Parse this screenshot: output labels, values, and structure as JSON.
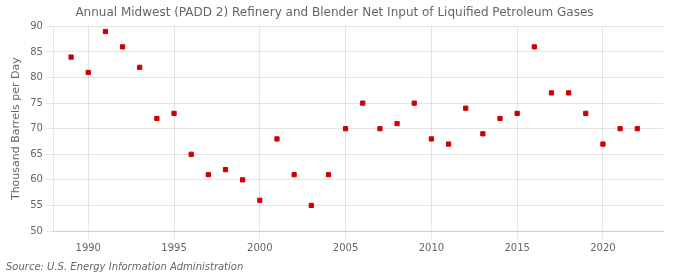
{
  "chart_data": {
    "type": "scatter",
    "title": "Annual Midwest (PADD 2) Refinery and Blender Net Input of Liquified Petroleum Gases",
    "y_label": "Thousand Barrels per Day",
    "annotations": [
      "Source: U.S. Energy Information Administration"
    ],
    "x": [
      1989,
      1990,
      1991,
      1992,
      1993,
      1994,
      1995,
      1996,
      1997,
      1998,
      1999,
      2000,
      2001,
      2002,
      2003,
      2004,
      2005,
      2006,
      2007,
      2008,
      2009,
      2010,
      2011,
      2012,
      2013,
      2014,
      2015,
      2016,
      2017,
      2018,
      2019,
      2020,
      2021,
      2022
    ],
    "values": [
      84,
      81,
      89,
      86,
      82,
      72,
      73,
      65,
      61,
      62,
      60,
      56,
      68,
      61,
      55,
      61,
      70,
      75,
      70,
      71,
      75,
      68,
      67,
      74,
      69,
      72,
      73,
      86,
      77,
      77,
      73,
      67,
      70,
      70
    ],
    "color": "#cc0000",
    "marker": "square",
    "xlim": [
      1988.0,
      2023.5
    ],
    "xticks": [
      1990,
      1995,
      2000,
      2005,
      2010,
      2015,
      2020
    ],
    "ylim": [
      50,
      90
    ],
    "yticks": [
      50,
      55,
      60,
      65,
      70,
      75,
      80,
      85,
      90
    ],
    "grid": true
  }
}
